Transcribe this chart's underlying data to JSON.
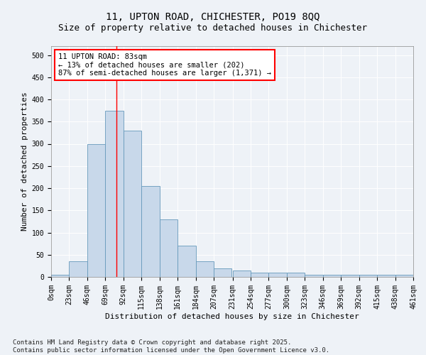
{
  "title_line1": "11, UPTON ROAD, CHICHESTER, PO19 8QQ",
  "title_line2": "Size of property relative to detached houses in Chichester",
  "xlabel": "Distribution of detached houses by size in Chichester",
  "ylabel": "Number of detached properties",
  "bin_labels": [
    "0sqm",
    "23sqm",
    "46sqm",
    "69sqm",
    "92sqm",
    "115sqm",
    "138sqm",
    "161sqm",
    "184sqm",
    "207sqm",
    "231sqm",
    "254sqm",
    "277sqm",
    "300sqm",
    "323sqm",
    "346sqm",
    "369sqm",
    "392sqm",
    "415sqm",
    "438sqm",
    "461sqm"
  ],
  "bin_edges": [
    0,
    23,
    46,
    69,
    92,
    115,
    138,
    161,
    184,
    207,
    231,
    254,
    277,
    300,
    323,
    346,
    369,
    392,
    415,
    438,
    461
  ],
  "bar_heights": [
    5,
    35,
    300,
    375,
    330,
    205,
    130,
    70,
    35,
    20,
    15,
    10,
    10,
    10,
    5,
    5,
    5,
    5,
    5,
    5
  ],
  "bar_color": "#c8d8ea",
  "bar_edge_color": "#6699bb",
  "red_line_x": 83,
  "annotation_line1": "11 UPTON ROAD: 83sqm",
  "annotation_line2": "← 13% of detached houses are smaller (202)",
  "annotation_line3": "87% of semi-detached houses are larger (1,371) →",
  "ylim": [
    0,
    520
  ],
  "yticks": [
    0,
    50,
    100,
    150,
    200,
    250,
    300,
    350,
    400,
    450,
    500
  ],
  "background_color": "#eef2f7",
  "plot_background": "#eef2f7",
  "footer_text": "Contains HM Land Registry data © Crown copyright and database right 2025.\nContains public sector information licensed under the Open Government Licence v3.0.",
  "title_fontsize": 10,
  "subtitle_fontsize": 9,
  "axis_label_fontsize": 8,
  "tick_fontsize": 7,
  "annotation_fontsize": 7.5,
  "footer_fontsize": 6.5
}
